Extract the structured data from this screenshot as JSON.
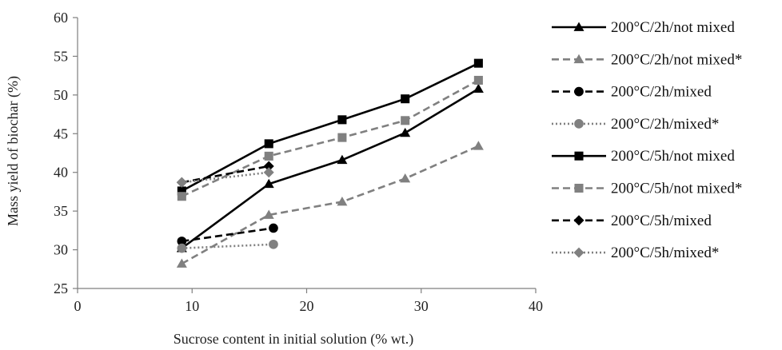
{
  "chart_data": {
    "type": "line",
    "xlabel": "Sucrose content in initial solution (% wt.)",
    "ylabel": "Mass yield of biochar (%)",
    "xlim": [
      0,
      40
    ],
    "ylim": [
      25,
      60
    ],
    "xticks": [
      0,
      10,
      20,
      30,
      40
    ],
    "yticks": [
      25,
      30,
      35,
      40,
      45,
      50,
      55,
      60
    ],
    "grid": false,
    "legend_position": "right",
    "series": [
      {
        "name": "200°C/2h/not mixed",
        "color": "#000000",
        "dash": "solid",
        "marker": "triangle",
        "x": [
          9.1,
          16.7,
          23.1,
          28.6,
          35.0
        ],
        "y": [
          30.2,
          38.5,
          41.6,
          45.1,
          50.8
        ]
      },
      {
        "name": "200°C/2h/not mixed*",
        "color": "#808080",
        "dash": "dashed",
        "marker": "triangle",
        "x": [
          9.1,
          16.7,
          23.1,
          28.6,
          35.0
        ],
        "y": [
          28.2,
          34.5,
          36.2,
          39.2,
          43.4
        ]
      },
      {
        "name": "200°C/2h/mixed",
        "color": "#000000",
        "dash": "dashed",
        "marker": "circle",
        "x": [
          9.1,
          17.1
        ],
        "y": [
          31.1,
          32.8
        ]
      },
      {
        "name": "200°C/2h/mixed*",
        "color": "#808080",
        "dash": "dotted",
        "marker": "circle",
        "x": [
          9.1,
          17.1
        ],
        "y": [
          30.2,
          30.7
        ]
      },
      {
        "name": "200°C/5h/not mixed",
        "color": "#000000",
        "dash": "solid",
        "marker": "square",
        "x": [
          9.1,
          16.7,
          23.1,
          28.6,
          35.0
        ],
        "y": [
          37.6,
          43.7,
          46.8,
          49.5,
          54.1
        ]
      },
      {
        "name": "200°C/5h/not mixed*",
        "color": "#808080",
        "dash": "dashed",
        "marker": "square",
        "x": [
          9.1,
          16.7,
          23.1,
          28.6,
          35.0
        ],
        "y": [
          36.9,
          42.1,
          44.5,
          46.7,
          51.9
        ]
      },
      {
        "name": "200°C/5h/mixed",
        "color": "#000000",
        "dash": "dashed",
        "marker": "diamond",
        "x": [
          9.1,
          16.7
        ],
        "y": [
          38.7,
          40.8
        ]
      },
      {
        "name": "200°C/5h/mixed*",
        "color": "#808080",
        "dash": "dotted",
        "marker": "diamond",
        "x": [
          9.1,
          16.7
        ],
        "y": [
          38.7,
          40.0
        ]
      }
    ]
  }
}
